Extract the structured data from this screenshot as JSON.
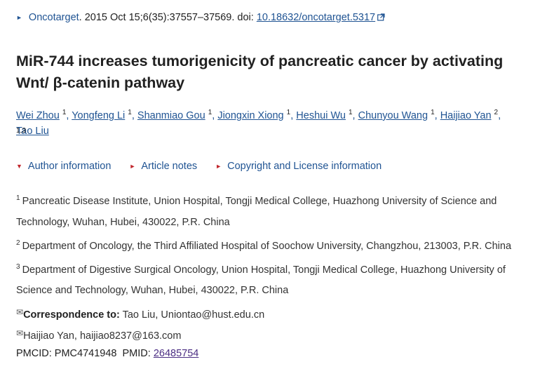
{
  "citation": {
    "journal": "Oncotarget",
    "details": ". 2015 Oct 15;6(35):37557–37569. doi: ",
    "doi": "10.18632/oncotarget.5317"
  },
  "title": "MiR-744 increases tumorigenicity of pancreatic cancer by activating Wnt/ β-catenin pathway",
  "authors": [
    {
      "name": "Wei Zhou",
      "aff": "1"
    },
    {
      "name": "Yongfeng Li",
      "aff": "1"
    },
    {
      "name": "Shanmiao Gou",
      "aff": "1"
    },
    {
      "name": "Jiongxin Xiong",
      "aff": "1"
    },
    {
      "name": "Heshui Wu",
      "aff": "1"
    },
    {
      "name": "Chunyou Wang",
      "aff": "1"
    },
    {
      "name": "Haijiao Yan",
      "aff": "2"
    },
    {
      "name": "Tao Liu",
      "aff": "1,3"
    }
  ],
  "toggles": [
    "Author information",
    "Article notes",
    "Copyright and License information"
  ],
  "affiliations": [
    {
      "num": "1",
      "text": "Pancreatic Disease Institute, Union Hospital, Tongji Medical College, Huazhong University of Science and Technology, Wuhan, Hubei, 430022, P.R. China"
    },
    {
      "num": "2",
      "text": "Department of Oncology, the Third Affiliated Hospital of Soochow University, Changzhou, 213003, P.R. China"
    },
    {
      "num": "3",
      "text": "Department of Digestive Surgical Oncology, Union Hospital, Tongji Medical College, Huazhong University of Science and Technology, Wuhan, Hubei, 430022, P.R. China"
    }
  ],
  "correspondence": {
    "label": "Correspondence to:",
    "primary": "Tao Liu, Uniontao@hust.edu.cn",
    "secondary": "Haijiao Yan, haijiao8237@163.com"
  },
  "ids": {
    "pmcid_text": "PMCID: PMC4741948  PMID: ",
    "pmid": "26485754"
  },
  "icons": {
    "citation_marker": "triangle-right-icon",
    "external_link": "external-link-icon",
    "toggle_author": "triangle-down-icon",
    "toggle_other": "triangle-right-icon",
    "email": "envelope-icon"
  },
  "colors": {
    "link": "#205493",
    "toggle_arrow": "#c1272d",
    "visited_link": "#4b2e83",
    "text": "#212121"
  }
}
